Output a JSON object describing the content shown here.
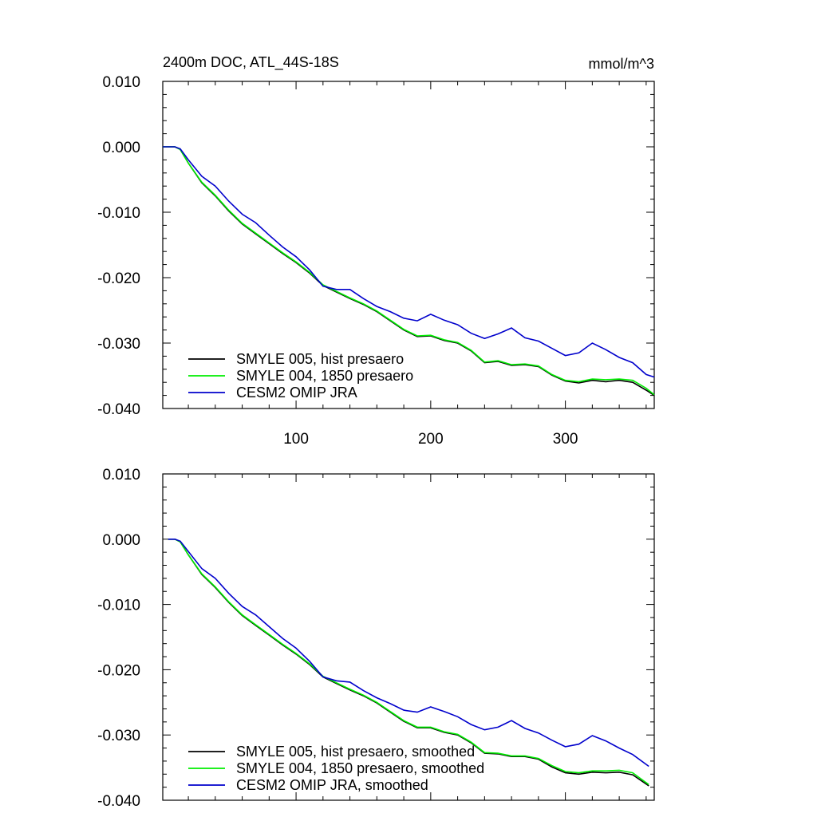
{
  "title_left": "2400m DOC, ATL_44S-18S",
  "title_right": "mmol/m^3",
  "chart_data": [
    {
      "type": "line",
      "title": "2400m DOC, ATL_44S-18S",
      "units": "mmol/m^3",
      "xlim": [
        1,
        366
      ],
      "ylim": [
        -0.04,
        0.01
      ],
      "y_ticks": [
        0.01,
        0.0,
        -0.01,
        -0.02,
        -0.03,
        -0.04
      ],
      "y_tick_labels": [
        "0.010",
        "0.000",
        "-0.010",
        "-0.020",
        "-0.030",
        "-0.040"
      ],
      "x_ticks": [
        100,
        200,
        300
      ],
      "x_tick_labels": [
        "100",
        "200",
        "300"
      ],
      "legend_position": "bottom-left",
      "series": [
        {
          "name": "SMYLE 005, hist presaero",
          "color": "#000000",
          "x": [
            1,
            10,
            14,
            20,
            30,
            40,
            50,
            60,
            70,
            80,
            90,
            100,
            110,
            120,
            130,
            140,
            150,
            160,
            170,
            180,
            190,
            200,
            210,
            220,
            230,
            240,
            250,
            260,
            270,
            280,
            290,
            300,
            310,
            320,
            330,
            340,
            350,
            360,
            366
          ],
          "y": [
            0.0,
            0.0,
            -0.0004,
            -0.0025,
            -0.0055,
            -0.0075,
            -0.0098,
            -0.0118,
            -0.0133,
            -0.0148,
            -0.0163,
            -0.0177,
            -0.0193,
            -0.0212,
            -0.0222,
            -0.0232,
            -0.0241,
            -0.0252,
            -0.0266,
            -0.028,
            -0.029,
            -0.0289,
            -0.0296,
            -0.03,
            -0.0312,
            -0.033,
            -0.0328,
            -0.0334,
            -0.0333,
            -0.0336,
            -0.0349,
            -0.0358,
            -0.0361,
            -0.0357,
            -0.0359,
            -0.0357,
            -0.036,
            -0.0372,
            -0.038
          ]
        },
        {
          "name": "SMYLE 004, 1850 presaero",
          "color": "#00ee00",
          "x": [
            1,
            10,
            14,
            20,
            30,
            40,
            50,
            60,
            70,
            80,
            90,
            100,
            110,
            120,
            130,
            140,
            150,
            160,
            170,
            180,
            190,
            200,
            210,
            220,
            230,
            240,
            250,
            260,
            270,
            280,
            290,
            300,
            310,
            320,
            330,
            340,
            350,
            360,
            366
          ],
          "y": [
            0.0,
            0.0,
            -0.0004,
            -0.0025,
            -0.0054,
            -0.0074,
            -0.0097,
            -0.0117,
            -0.0132,
            -0.0147,
            -0.0162,
            -0.0176,
            -0.0192,
            -0.0211,
            -0.0221,
            -0.0231,
            -0.024,
            -0.0251,
            -0.0265,
            -0.0279,
            -0.0289,
            -0.0288,
            -0.0295,
            -0.0299,
            -0.0311,
            -0.0329,
            -0.0327,
            -0.0333,
            -0.0332,
            -0.0335,
            -0.0348,
            -0.0357,
            -0.0359,
            -0.0355,
            -0.0356,
            -0.0355,
            -0.0357,
            -0.0369,
            -0.0379
          ]
        },
        {
          "name": "CESM2 OMIP JRA",
          "color": "#0000cc",
          "x": [
            1,
            10,
            14,
            20,
            30,
            40,
            50,
            60,
            70,
            80,
            90,
            100,
            110,
            120,
            130,
            140,
            150,
            160,
            170,
            180,
            190,
            200,
            210,
            220,
            230,
            240,
            250,
            260,
            270,
            280,
            290,
            300,
            310,
            320,
            330,
            340,
            350,
            360,
            366
          ],
          "y": [
            0.0,
            0.0,
            -0.0003,
            -0.002,
            -0.0045,
            -0.006,
            -0.0083,
            -0.0103,
            -0.0116,
            -0.0135,
            -0.0153,
            -0.0168,
            -0.0188,
            -0.0213,
            -0.0218,
            -0.0218,
            -0.0232,
            -0.0244,
            -0.0252,
            -0.0262,
            -0.0266,
            -0.0256,
            -0.0265,
            -0.0272,
            -0.0285,
            -0.0293,
            -0.0286,
            -0.0277,
            -0.0292,
            -0.0297,
            -0.0308,
            -0.0319,
            -0.0315,
            -0.03,
            -0.031,
            -0.0322,
            -0.033,
            -0.0348,
            -0.0352
          ]
        }
      ]
    },
    {
      "type": "line",
      "xlim": [
        1,
        366
      ],
      "ylim": [
        -0.04,
        0.01
      ],
      "y_ticks": [
        0.01,
        0.0,
        -0.01,
        -0.02,
        -0.03,
        -0.04
      ],
      "y_tick_labels": [
        "0.010",
        "0.000",
        "-0.010",
        "-0.020",
        "-0.030",
        "-0.040"
      ],
      "x_ticks": [
        100,
        200,
        300
      ],
      "legend_position": "bottom-left",
      "series": [
        {
          "name": "SMYLE 005, hist presaero, smoothed",
          "color": "#000000",
          "x": [
            5,
            10,
            14,
            20,
            30,
            40,
            50,
            60,
            70,
            80,
            90,
            100,
            110,
            120,
            130,
            140,
            150,
            160,
            170,
            180,
            190,
            200,
            210,
            220,
            230,
            240,
            250,
            260,
            270,
            280,
            290,
            300,
            310,
            320,
            330,
            340,
            350,
            362
          ],
          "y": [
            0.0,
            0.0,
            -0.0004,
            -0.0024,
            -0.0054,
            -0.0074,
            -0.0097,
            -0.0117,
            -0.0132,
            -0.0147,
            -0.0162,
            -0.0176,
            -0.0192,
            -0.0211,
            -0.0221,
            -0.0231,
            -0.024,
            -0.0251,
            -0.0265,
            -0.0279,
            -0.0289,
            -0.0289,
            -0.0296,
            -0.03,
            -0.0312,
            -0.0328,
            -0.0329,
            -0.0333,
            -0.0333,
            -0.0337,
            -0.0349,
            -0.0358,
            -0.036,
            -0.0357,
            -0.0358,
            -0.0357,
            -0.0361,
            -0.0378
          ]
        },
        {
          "name": "SMYLE 004, 1850 presaero, smoothed",
          "color": "#00ee00",
          "x": [
            5,
            10,
            14,
            20,
            30,
            40,
            50,
            60,
            70,
            80,
            90,
            100,
            110,
            120,
            130,
            140,
            150,
            160,
            170,
            180,
            190,
            200,
            210,
            220,
            230,
            240,
            250,
            260,
            270,
            280,
            290,
            300,
            310,
            320,
            330,
            340,
            350,
            362
          ],
          "y": [
            0.0,
            0.0,
            -0.0004,
            -0.0024,
            -0.0053,
            -0.0073,
            -0.0096,
            -0.0116,
            -0.0131,
            -0.0146,
            -0.0161,
            -0.0175,
            -0.0191,
            -0.021,
            -0.022,
            -0.023,
            -0.0239,
            -0.025,
            -0.0264,
            -0.0278,
            -0.0288,
            -0.0288,
            -0.0295,
            -0.0299,
            -0.0311,
            -0.0327,
            -0.0328,
            -0.0332,
            -0.0332,
            -0.0336,
            -0.0347,
            -0.0356,
            -0.0358,
            -0.0355,
            -0.0355,
            -0.0354,
            -0.0358,
            -0.0376
          ]
        },
        {
          "name": "CESM2 OMIP JRA, smoothed",
          "color": "#0000cc",
          "x": [
            5,
            10,
            14,
            20,
            30,
            40,
            50,
            60,
            70,
            80,
            90,
            100,
            110,
            120,
            130,
            140,
            150,
            160,
            170,
            180,
            190,
            200,
            210,
            220,
            230,
            240,
            250,
            260,
            270,
            280,
            290,
            300,
            310,
            320,
            330,
            340,
            350,
            362
          ],
          "y": [
            0.0,
            0.0,
            -0.0003,
            -0.0019,
            -0.0045,
            -0.006,
            -0.0083,
            -0.0103,
            -0.0116,
            -0.0134,
            -0.0152,
            -0.0167,
            -0.0187,
            -0.0211,
            -0.0217,
            -0.0219,
            -0.0232,
            -0.0243,
            -0.0252,
            -0.0262,
            -0.0265,
            -0.0257,
            -0.0264,
            -0.0272,
            -0.0284,
            -0.0292,
            -0.0288,
            -0.0278,
            -0.029,
            -0.0297,
            -0.0308,
            -0.0318,
            -0.0314,
            -0.0301,
            -0.0309,
            -0.032,
            -0.033,
            -0.0348
          ]
        }
      ]
    }
  ]
}
